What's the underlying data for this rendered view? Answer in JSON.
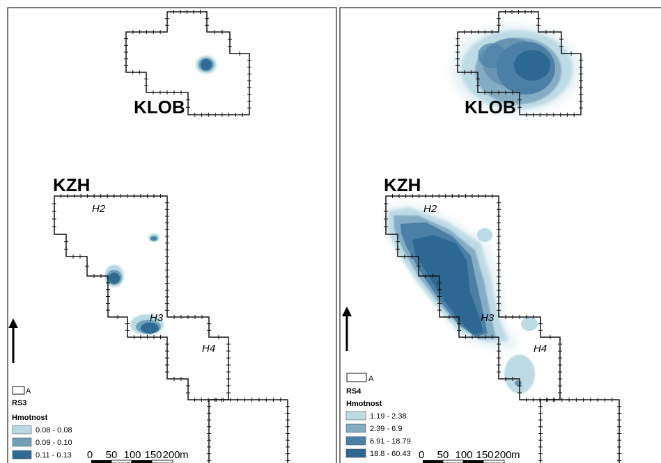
{
  "panels": [
    {
      "site_top": "KLOB",
      "site_bottom": "KZH",
      "houses": [
        "H2",
        "H3",
        "H4"
      ],
      "legend": {
        "boundary_label": "A",
        "layer": "RS3",
        "field": "Hmotnost",
        "classes": [
          {
            "label": "0.08 - 0.08",
            "color": "#b9d9e2"
          },
          {
            "label": "0.09 - 0.10",
            "color": "#6f9fb9"
          },
          {
            "label": "0.11 - 0.13",
            "color": "#2f6b95"
          }
        ]
      },
      "scale": {
        "ticks": [
          "0",
          "50",
          "100",
          "150",
          "200"
        ],
        "unit": "m"
      }
    },
    {
      "site_top": "KLOB",
      "site_bottom": "KZH",
      "houses": [
        "H2",
        "H3",
        "H4"
      ],
      "legend": {
        "boundary_label": "A",
        "layer": "RS4",
        "field": "Hmotnost",
        "classes": [
          {
            "label": "1.19 - 2.38",
            "color": "#bcdbe4"
          },
          {
            "label": "2.39 - 6.9",
            "color": "#84acc4"
          },
          {
            "label": "6.91 - 18.79",
            "color": "#4c7fa6"
          },
          {
            "label": "18.8 - 60.43",
            "color": "#2c6891"
          }
        ]
      },
      "scale": {
        "ticks": [
          "0",
          "50",
          "100",
          "150",
          "200"
        ],
        "unit": "m"
      }
    }
  ],
  "colors": {
    "frame": "#222222",
    "boundary": "#111111",
    "glow": "#e6f1f5"
  }
}
